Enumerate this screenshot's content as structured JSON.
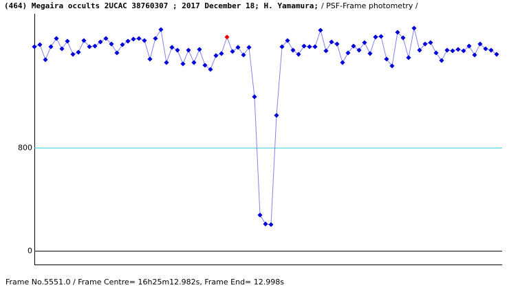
{
  "chart_data": {
    "type": "line",
    "title": "(464) Megaira  occults  2UCAC 38760307 ; 2017 December 18; H. Yamamura;",
    "subtitle": "/ PSF-Frame photometry /",
    "footer": "Frame No.5551.0 / Frame Centre= 16h25m12.982s,  Frame End= 12.998s",
    "color": "#0000dd",
    "line_color": "#8080f0",
    "highlight": {
      "index": 35,
      "color": "#ee0000"
    },
    "ylim": [
      -107,
      1840
    ],
    "yticks": [
      0,
      800
    ],
    "tick_line_colors": [
      "#000000",
      "#40d0e0"
    ],
    "values": [
      1584,
      1600,
      1483,
      1584,
      1648,
      1568,
      1627,
      1525,
      1541,
      1632,
      1584,
      1589,
      1621,
      1648,
      1605,
      1536,
      1600,
      1627,
      1643,
      1648,
      1632,
      1488,
      1648,
      1717,
      1461,
      1579,
      1557,
      1451,
      1557,
      1461,
      1563,
      1440,
      1408,
      1515,
      1531,
      1659,
      1547,
      1579,
      1520,
      1579,
      1195,
      277,
      208,
      203,
      1051,
      1584,
      1632,
      1557,
      1525,
      1589,
      1584,
      1584,
      1712,
      1552,
      1621,
      1605,
      1461,
      1536,
      1589,
      1557,
      1616,
      1531,
      1659,
      1664,
      1488,
      1435,
      1696,
      1653,
      1499,
      1728,
      1557,
      1605,
      1616,
      1536,
      1477,
      1557,
      1552,
      1563,
      1552,
      1589,
      1520,
      1605,
      1568,
      1557,
      1525
    ]
  }
}
